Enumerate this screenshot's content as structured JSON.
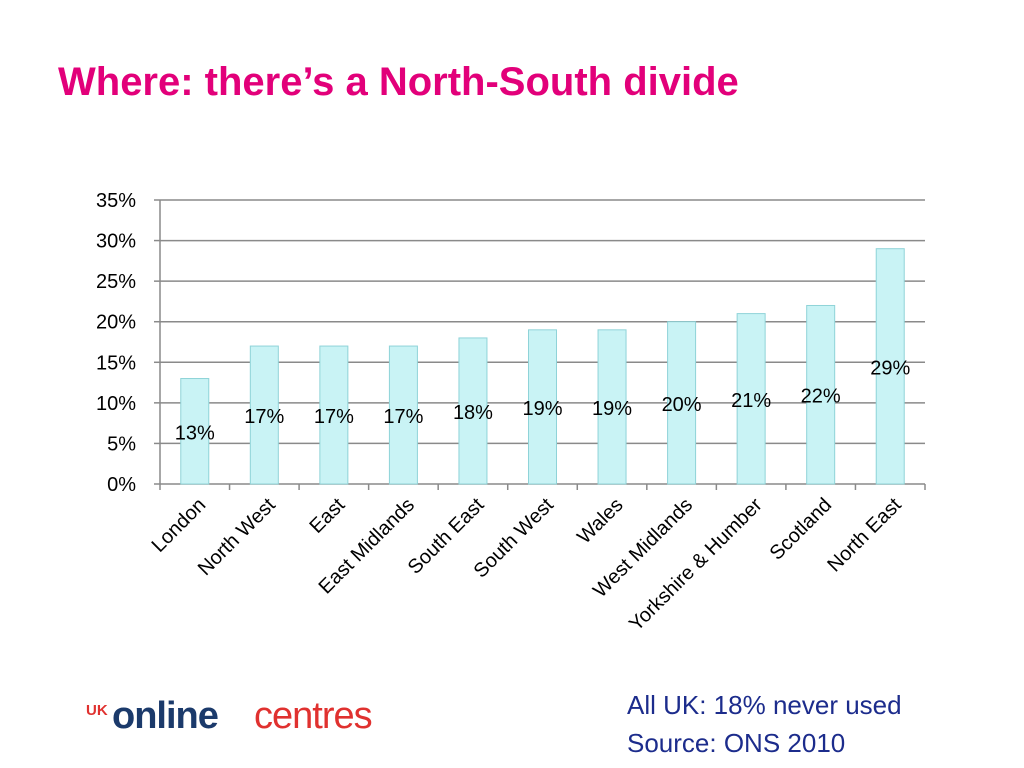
{
  "chart_data": {
    "type": "bar",
    "title": "Where: there’s a North-South divide",
    "categories": [
      "London",
      "North West",
      "East",
      "East Midlands",
      "South East",
      "South West",
      "Wales",
      "West Midlands",
      "Yorkshire & Humber",
      "Scotland",
      "North East"
    ],
    "values": [
      13,
      17,
      17,
      17,
      18,
      19,
      19,
      20,
      21,
      22,
      29
    ],
    "value_labels": [
      "13%",
      "17%",
      "17%",
      "17%",
      "18%",
      "19%",
      "19%",
      "20%",
      "21%",
      "22%",
      "29%"
    ],
    "color": "#c9f3f5",
    "ylim": [
      0,
      35
    ],
    "yticks": [
      {
        "value": 0,
        "label": "0%"
      },
      {
        "value": 5,
        "label": "5%"
      },
      {
        "value": 10,
        "label": "10%"
      },
      {
        "value": 15,
        "label": "15%"
      },
      {
        "value": 20,
        "label": "20%"
      },
      {
        "value": 25,
        "label": "25%"
      },
      {
        "value": 30,
        "label": "30%"
      },
      {
        "value": 35,
        "label": "35%"
      }
    ],
    "grid": true
  },
  "notes": [
    "All UK: 18% never used",
    "Source: ONS 2010"
  ],
  "logo": {
    "prefix": "UK",
    "first": "online",
    "second": "centres"
  }
}
